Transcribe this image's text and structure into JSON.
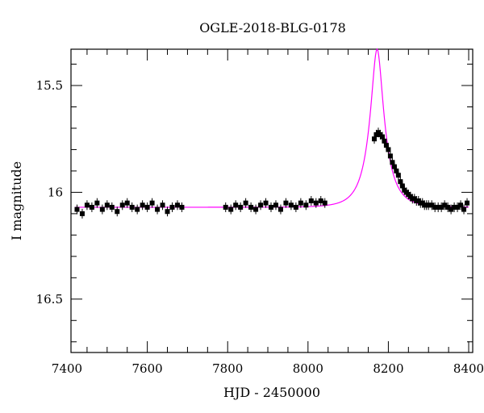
{
  "chart_data": {
    "type": "scatter",
    "title": "OGLE-2018-BLG-0178",
    "xlabel": "HJD - 2450000",
    "ylabel": "I magnitude",
    "xlim": [
      7410,
      8410
    ],
    "ylim": [
      16.75,
      15.33
    ],
    "y_inverted": true,
    "xticks": [
      7400,
      7600,
      7800,
      8000,
      8200,
      8400
    ],
    "xtick_labels": [
      "7400",
      "7600",
      "7800",
      "8000",
      "8200",
      "8400"
    ],
    "yticks": [
      15.5,
      16,
      16.5
    ],
    "ytick_labels": [
      "15.5",
      "16",
      "16.5"
    ],
    "grid": false,
    "model": {
      "color": "#ff00ff",
      "baseline_mag": 16.07,
      "t0": 8172,
      "tE": 45.0,
      "u0": 0.3,
      "fs": 0.4
    },
    "series": [
      {
        "color": "#000000",
        "x": [
          7425,
          7438,
          7450,
          7462,
          7475,
          7488,
          7500,
          7512,
          7525,
          7538,
          7550,
          7562,
          7575,
          7588,
          7600,
          7612,
          7625,
          7638,
          7650,
          7662,
          7675,
          7686,
          7795,
          7808,
          7820,
          7832,
          7845,
          7858,
          7870,
          7882,
          7895,
          7908,
          7920,
          7932,
          7945,
          7958,
          7970,
          7982,
          7995,
          8008,
          8020,
          8032,
          8042,
          8165,
          8170,
          8175,
          8180,
          8185,
          8190,
          8195,
          8200,
          8205,
          8210,
          8215,
          8220,
          8225,
          8230,
          8235,
          8240,
          8245,
          8250,
          8255,
          8260,
          8265,
          8270,
          8275,
          8280,
          8285,
          8290,
          8295,
          8300,
          8308,
          8316,
          8324,
          8332,
          8340,
          8348,
          8356,
          8364,
          8372,
          8380,
          8388,
          8396
        ],
        "y": [
          16.08,
          16.1,
          16.06,
          16.07,
          16.05,
          16.08,
          16.06,
          16.07,
          16.09,
          16.06,
          16.05,
          16.07,
          16.08,
          16.06,
          16.07,
          16.05,
          16.08,
          16.06,
          16.09,
          16.07,
          16.06,
          16.07,
          16.07,
          16.08,
          16.06,
          16.07,
          16.05,
          16.07,
          16.08,
          16.06,
          16.05,
          16.07,
          16.06,
          16.08,
          16.05,
          16.06,
          16.07,
          16.05,
          16.06,
          16.04,
          16.05,
          16.04,
          16.05,
          15.75,
          15.73,
          15.72,
          15.73,
          15.74,
          15.76,
          15.78,
          15.8,
          15.83,
          15.86,
          15.88,
          15.9,
          15.92,
          15.95,
          15.97,
          15.99,
          16.0,
          16.01,
          16.02,
          16.03,
          16.03,
          16.04,
          16.04,
          16.05,
          16.05,
          16.06,
          16.06,
          16.06,
          16.06,
          16.07,
          16.07,
          16.07,
          16.06,
          16.07,
          16.08,
          16.07,
          16.07,
          16.06,
          16.08,
          16.05
        ]
      }
    ]
  }
}
